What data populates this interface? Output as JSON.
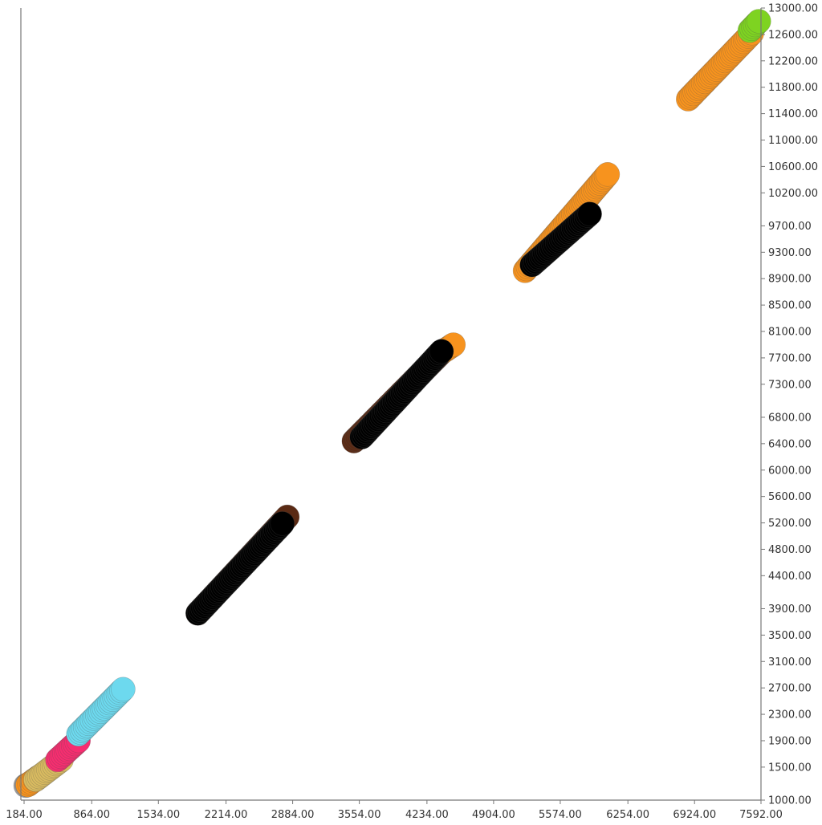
{
  "chart_data": {
    "type": "scatter",
    "title": "",
    "xlabel": "",
    "ylabel": "",
    "xlim": [
      184,
      7592
    ],
    "ylim": [
      1000,
      13000
    ],
    "y_axis_side": "right",
    "grid": false,
    "legend": "none",
    "x_ticks": [
      "184.00",
      "864.00",
      "1534.00",
      "2214.00",
      "2884.00",
      "3554.00",
      "4234.00",
      "4904.00",
      "5574.00",
      "6254.00",
      "6924.00",
      "7592.00"
    ],
    "y_ticks": [
      "1000.00",
      "1500.00",
      "1900.00",
      "2300.00",
      "2700.00",
      "3100.00",
      "3500.00",
      "3900.00",
      "4400.00",
      "4800.00",
      "5200.00",
      "5600.00",
      "6000.00",
      "6400.00",
      "6800.00",
      "7300.00",
      "7700.00",
      "8100.00",
      "8500.00",
      "8900.00",
      "9300.00",
      "9700.00",
      "10200.00",
      "10600.00",
      "11000.00",
      "11400.00",
      "11800.00",
      "12200.00",
      "12600.00",
      "13000.00"
    ],
    "series": [
      {
        "color": "#9e9e9e",
        "points": [
          [
            200,
            1220
          ],
          [
            230,
            1240
          ]
        ]
      },
      {
        "color": "#f7931e",
        "points": [
          [
            220,
            1230
          ],
          [
            330,
            1350
          ]
        ]
      },
      {
        "color": "#d9bb60",
        "points": [
          [
            300,
            1310
          ],
          [
            560,
            1610
          ]
        ]
      },
      {
        "color": "#f72d70",
        "points": [
          [
            520,
            1610
          ],
          [
            730,
            1900
          ]
        ]
      },
      {
        "color": "#6dd9ee",
        "points": [
          [
            730,
            2000
          ],
          [
            1180,
            2680
          ]
        ]
      },
      {
        "color": "#5a2a14",
        "points": [
          [
            1930,
            3830
          ],
          [
            2830,
            5290
          ]
        ]
      },
      {
        "color": "#000000",
        "points": [
          [
            1930,
            3830
          ],
          [
            2780,
            5190
          ]
        ]
      },
      {
        "color": "#5a2a14",
        "points": [
          [
            3500,
            6440
          ],
          [
            4400,
            7810
          ]
        ]
      },
      {
        "color": "#f7931e",
        "points": [
          [
            4400,
            7800
          ],
          [
            4500,
            7900
          ]
        ]
      },
      {
        "color": "#000000",
        "points": [
          [
            3580,
            6500
          ],
          [
            4380,
            7800
          ]
        ]
      },
      {
        "color": "#f7931e",
        "points": [
          [
            5220,
            9020
          ],
          [
            6050,
            10480
          ]
        ]
      },
      {
        "color": "#000000",
        "points": [
          [
            5290,
            9110
          ],
          [
            5870,
            9880
          ]
        ]
      },
      {
        "color": "#f7931e",
        "points": [
          [
            6860,
            11620
          ],
          [
            7500,
            12620
          ]
        ]
      },
      {
        "color": "#7ed321",
        "points": [
          [
            7480,
            12660
          ],
          [
            7570,
            12800
          ]
        ]
      }
    ]
  }
}
